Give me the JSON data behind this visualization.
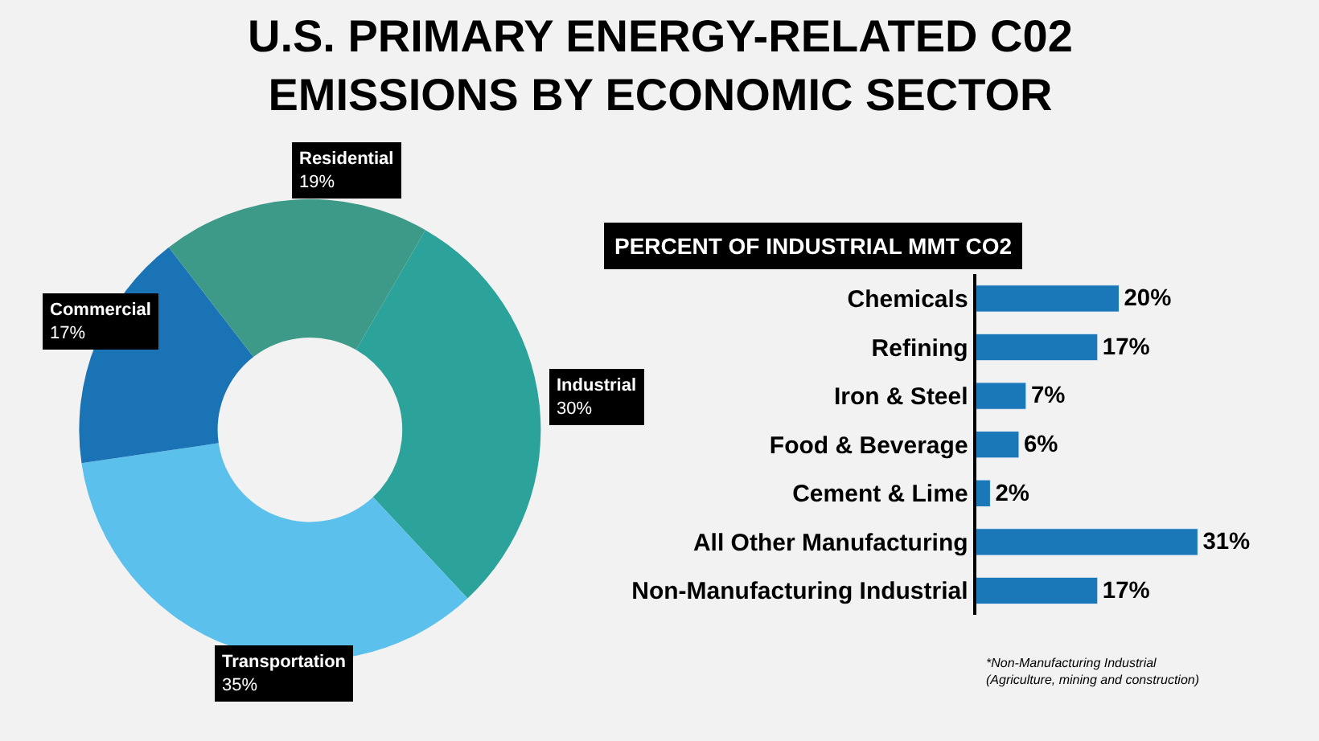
{
  "chart_data": [
    {
      "type": "donut",
      "title": "U.S. PRIMARY ENERGY-RELATED C02 EMISSIONS BY ECONOMIC SECTOR",
      "categories": [
        "Industrial",
        "Transportation",
        "Commercial",
        "Residential"
      ],
      "values": [
        30,
        35,
        17,
        19
      ],
      "colors": [
        "#2ba39a",
        "#5bc0eb",
        "#1a73b5",
        "#3d9a88"
      ],
      "value_labels": [
        "30%",
        "35%",
        "17%",
        "19%"
      ]
    },
    {
      "type": "bar",
      "orientation": "horizontal",
      "title": "PERCENT OF INDUSTRIAL MMT CO2",
      "categories": [
        "Chemicals",
        "Refining",
        "Iron & Steel",
        "Food & Beverage",
        "Cement & Lime",
        "All Other Manufacturing",
        "Non-Manufacturing Industrial"
      ],
      "values": [
        20,
        17,
        7,
        6,
        2,
        31,
        17
      ],
      "value_labels": [
        "20%",
        "17%",
        "7%",
        "6%",
        "2%",
        "31%",
        "17%"
      ],
      "color": "#1a78b8",
      "tick_labels": "y",
      "annotations": [
        "*Non-Manufacturing Industrial\n(Agriculture, mining and construction)"
      ]
    }
  ]
}
